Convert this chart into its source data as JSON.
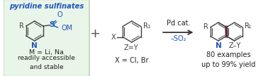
{
  "bg_box_color": "#e8f5e8",
  "bg_box_edge_color": "#a8cca8",
  "title_text": "pyridine sulfinates",
  "title_color": "#2255bb",
  "title_style": "italic",
  "title_fontsize": 7.2,
  "text_m": "M = Li, Na",
  "text_accessible": "readily accessible\nand stable",
  "text_x": "X = Cl, Br",
  "text_pd": "Pd cat.",
  "text_so2": "–SO₂",
  "text_so2_color": "#2255bb",
  "text_80": "80 examples\nup to 99% yield",
  "arrow_color": "#333333",
  "bond_color": "#404040",
  "n_color": "#2255bb",
  "sulfur_color": "#2255bb",
  "pink_bond_color": "#8b1a4a",
  "fig_bg": "#ffffff",
  "plus_color": "#555555",
  "text_color": "#222222"
}
